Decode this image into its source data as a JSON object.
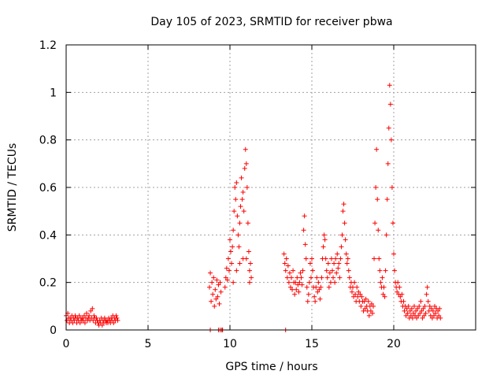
{
  "chart_data": {
    "type": "scatter",
    "title": "Day 105 of 2023, SRMTID for receiver pbwa",
    "xlabel": "GPS time / hours",
    "ylabel": "SRMTID / TECUs",
    "xlim": [
      0,
      25
    ],
    "ylim": [
      0,
      1.2
    ],
    "xticks": [
      0,
      5,
      10,
      15,
      20
    ],
    "xtick_labels": [
      "0",
      "5",
      "10",
      "15",
      "20"
    ],
    "yticks": [
      0,
      0.2,
      0.4,
      0.6,
      0.8,
      1,
      1.2
    ],
    "ytick_labels": [
      "0",
      "0.2",
      "0.4",
      "0.6",
      "0.8",
      "1",
      "1.2"
    ],
    "grid": true,
    "marker": "+",
    "colors": {
      "marker": "#ff0000",
      "grid": "#a0a0a0",
      "axes": "#000000"
    },
    "series": [
      {
        "name": "SRMTID",
        "points": [
          [
            0.0,
            0.06
          ],
          [
            0.05,
            0.04
          ],
          [
            0.1,
            0.07
          ],
          [
            0.15,
            0.05
          ],
          [
            0.2,
            0.03
          ],
          [
            0.25,
            0.05
          ],
          [
            0.3,
            0.04
          ],
          [
            0.35,
            0.06
          ],
          [
            0.4,
            0.03
          ],
          [
            0.45,
            0.05
          ],
          [
            0.5,
            0.04
          ],
          [
            0.55,
            0.06
          ],
          [
            0.6,
            0.05
          ],
          [
            0.65,
            0.03
          ],
          [
            0.7,
            0.05
          ],
          [
            0.75,
            0.04
          ],
          [
            0.8,
            0.06
          ],
          [
            0.85,
            0.03
          ],
          [
            0.9,
            0.05
          ],
          [
            0.95,
            0.04
          ],
          [
            1.0,
            0.05
          ],
          [
            1.05,
            0.04
          ],
          [
            1.1,
            0.06
          ],
          [
            1.15,
            0.03
          ],
          [
            1.2,
            0.05
          ],
          [
            1.25,
            0.07
          ],
          [
            1.3,
            0.04
          ],
          [
            1.35,
            0.05
          ],
          [
            1.4,
            0.06
          ],
          [
            1.45,
            0.04
          ],
          [
            1.5,
            0.08
          ],
          [
            1.55,
            0.05
          ],
          [
            1.6,
            0.09
          ],
          [
            1.65,
            0.04
          ],
          [
            1.7,
            0.06
          ],
          [
            1.75,
            0.05
          ],
          [
            1.8,
            0.03
          ],
          [
            1.85,
            0.05
          ],
          [
            1.9,
            0.04
          ],
          [
            1.95,
            0.03
          ],
          [
            2.0,
            0.02
          ],
          [
            2.05,
            0.04
          ],
          [
            2.1,
            0.03
          ],
          [
            2.15,
            0.05
          ],
          [
            2.2,
            0.02
          ],
          [
            2.25,
            0.04
          ],
          [
            2.3,
            0.03
          ],
          [
            2.35,
            0.05
          ],
          [
            2.4,
            0.04
          ],
          [
            2.45,
            0.03
          ],
          [
            2.5,
            0.04
          ],
          [
            2.55,
            0.03
          ],
          [
            2.6,
            0.05
          ],
          [
            2.65,
            0.04
          ],
          [
            2.7,
            0.03
          ],
          [
            2.75,
            0.05
          ],
          [
            2.8,
            0.04
          ],
          [
            2.85,
            0.06
          ],
          [
            2.9,
            0.03
          ],
          [
            2.95,
            0.05
          ],
          [
            3.0,
            0.04
          ],
          [
            3.05,
            0.06
          ],
          [
            3.1,
            0.05
          ],
          [
            3.15,
            0.04
          ],
          [
            8.8,
            0.0
          ],
          [
            9.3,
            0.0
          ],
          [
            9.4,
            0.0
          ],
          [
            9.5,
            0.0
          ],
          [
            9.55,
            0.0
          ],
          [
            13.4,
            0.0
          ],
          [
            8.75,
            0.18
          ],
          [
            8.8,
            0.24
          ],
          [
            8.85,
            0.12
          ],
          [
            8.9,
            0.2
          ],
          [
            8.95,
            0.15
          ],
          [
            9.0,
            0.22
          ],
          [
            9.05,
            0.1
          ],
          [
            9.1,
            0.17
          ],
          [
            9.15,
            0.13
          ],
          [
            9.2,
            0.21
          ],
          [
            9.25,
            0.14
          ],
          [
            9.3,
            0.19
          ],
          [
            9.35,
            0.11
          ],
          [
            9.4,
            0.2
          ],
          [
            9.45,
            0.16
          ],
          [
            9.7,
            0.18
          ],
          [
            9.75,
            0.22
          ],
          [
            9.8,
            0.26
          ],
          [
            9.85,
            0.21
          ],
          [
            9.9,
            0.3
          ],
          [
            9.95,
            0.25
          ],
          [
            10.0,
            0.38
          ],
          [
            10.05,
            0.33
          ],
          [
            10.1,
            0.28
          ],
          [
            10.15,
            0.35
          ],
          [
            10.2,
            0.42
          ],
          [
            10.25,
            0.5
          ],
          [
            10.3,
            0.6
          ],
          [
            10.35,
            0.55
          ],
          [
            10.4,
            0.62
          ],
          [
            10.45,
            0.48
          ],
          [
            10.5,
            0.4
          ],
          [
            10.55,
            0.35
          ],
          [
            10.6,
            0.45
          ],
          [
            10.65,
            0.52
          ],
          [
            10.7,
            0.64
          ],
          [
            10.75,
            0.55
          ],
          [
            10.8,
            0.58
          ],
          [
            10.85,
            0.5
          ],
          [
            10.9,
            0.68
          ],
          [
            10.95,
            0.76
          ],
          [
            11.0,
            0.7
          ],
          [
            11.05,
            0.6
          ],
          [
            11.1,
            0.45
          ],
          [
            11.15,
            0.33
          ],
          [
            11.2,
            0.25
          ],
          [
            11.25,
            0.28
          ],
          [
            11.3,
            0.22
          ],
          [
            10.2,
            0.2
          ],
          [
            10.4,
            0.25
          ],
          [
            10.6,
            0.28
          ],
          [
            10.8,
            0.3
          ],
          [
            11.0,
            0.3
          ],
          [
            11.2,
            0.2
          ],
          [
            13.3,
            0.32
          ],
          [
            13.35,
            0.28
          ],
          [
            13.4,
            0.25
          ],
          [
            13.45,
            0.3
          ],
          [
            13.5,
            0.22
          ],
          [
            13.55,
            0.27
          ],
          [
            13.6,
            0.2
          ],
          [
            13.65,
            0.24
          ],
          [
            13.7,
            0.18
          ],
          [
            13.75,
            0.22
          ],
          [
            13.8,
            0.17
          ],
          [
            13.85,
            0.25
          ],
          [
            13.9,
            0.2
          ],
          [
            13.95,
            0.15
          ],
          [
            14.0,
            0.2
          ],
          [
            14.05,
            0.17
          ],
          [
            14.1,
            0.22
          ],
          [
            14.15,
            0.19
          ],
          [
            14.2,
            0.16
          ],
          [
            14.25,
            0.2
          ],
          [
            14.3,
            0.24
          ],
          [
            14.35,
            0.22
          ],
          [
            14.4,
            0.19
          ],
          [
            14.45,
            0.25
          ],
          [
            14.5,
            0.42
          ],
          [
            14.55,
            0.48
          ],
          [
            14.6,
            0.36
          ],
          [
            14.65,
            0.3
          ],
          [
            14.7,
            0.18
          ],
          [
            14.75,
            0.12
          ],
          [
            14.8,
            0.15
          ],
          [
            14.85,
            0.2
          ],
          [
            14.9,
            0.28
          ],
          [
            14.95,
            0.22
          ],
          [
            15.0,
            0.3
          ],
          [
            15.05,
            0.25
          ],
          [
            15.1,
            0.18
          ],
          [
            15.15,
            0.14
          ],
          [
            15.2,
            0.12
          ],
          [
            15.25,
            0.18
          ],
          [
            15.3,
            0.22
          ],
          [
            15.35,
            0.16
          ],
          [
            15.4,
            0.2
          ],
          [
            15.45,
            0.17
          ],
          [
            15.5,
            0.13
          ],
          [
            15.55,
            0.18
          ],
          [
            15.6,
            0.22
          ],
          [
            15.65,
            0.3
          ],
          [
            15.7,
            0.35
          ],
          [
            15.75,
            0.4
          ],
          [
            15.8,
            0.38
          ],
          [
            15.85,
            0.3
          ],
          [
            15.9,
            0.25
          ],
          [
            15.95,
            0.22
          ],
          [
            16.0,
            0.28
          ],
          [
            16.05,
            0.18
          ],
          [
            16.1,
            0.24
          ],
          [
            16.15,
            0.2
          ],
          [
            16.2,
            0.3
          ],
          [
            16.25,
            0.25
          ],
          [
            16.3,
            0.22
          ],
          [
            16.35,
            0.28
          ],
          [
            16.4,
            0.2
          ],
          [
            16.45,
            0.3
          ],
          [
            16.5,
            0.24
          ],
          [
            16.55,
            0.32
          ],
          [
            16.6,
            0.26
          ],
          [
            16.65,
            0.28
          ],
          [
            16.7,
            0.22
          ],
          [
            16.75,
            0.3
          ],
          [
            16.8,
            0.35
          ],
          [
            16.85,
            0.4
          ],
          [
            16.9,
            0.5
          ],
          [
            16.95,
            0.53
          ],
          [
            17.0,
            0.45
          ],
          [
            17.05,
            0.38
          ],
          [
            17.1,
            0.32
          ],
          [
            17.15,
            0.28
          ],
          [
            17.2,
            0.3
          ],
          [
            17.25,
            0.25
          ],
          [
            17.3,
            0.22
          ],
          [
            17.35,
            0.18
          ],
          [
            17.4,
            0.2
          ],
          [
            17.45,
            0.16
          ],
          [
            17.5,
            0.18
          ],
          [
            17.55,
            0.14
          ],
          [
            17.6,
            0.2
          ],
          [
            17.65,
            0.15
          ],
          [
            17.7,
            0.12
          ],
          [
            17.75,
            0.18
          ],
          [
            17.8,
            0.14
          ],
          [
            17.85,
            0.16
          ],
          [
            17.9,
            0.12
          ],
          [
            17.95,
            0.15
          ],
          [
            18.0,
            0.1
          ],
          [
            18.05,
            0.14
          ],
          [
            18.1,
            0.12
          ],
          [
            18.15,
            0.08
          ],
          [
            18.2,
            0.12
          ],
          [
            18.25,
            0.09
          ],
          [
            18.3,
            0.13
          ],
          [
            18.35,
            0.1
          ],
          [
            18.4,
            0.08
          ],
          [
            18.45,
            0.12
          ],
          [
            18.5,
            0.06
          ],
          [
            18.55,
            0.1
          ],
          [
            18.6,
            0.08
          ],
          [
            18.65,
            0.11
          ],
          [
            18.7,
            0.07
          ],
          [
            18.75,
            0.1
          ],
          [
            18.8,
            0.3
          ],
          [
            18.85,
            0.45
          ],
          [
            18.9,
            0.6
          ],
          [
            18.95,
            0.76
          ],
          [
            19.0,
            0.55
          ],
          [
            19.05,
            0.42
          ],
          [
            19.1,
            0.3
          ],
          [
            19.15,
            0.25
          ],
          [
            19.2,
            0.2
          ],
          [
            19.25,
            0.18
          ],
          [
            19.3,
            0.22
          ],
          [
            19.35,
            0.15
          ],
          [
            19.4,
            0.18
          ],
          [
            19.45,
            0.14
          ],
          [
            19.5,
            0.25
          ],
          [
            19.55,
            0.4
          ],
          [
            19.6,
            0.55
          ],
          [
            19.65,
            0.7
          ],
          [
            19.7,
            0.85
          ],
          [
            19.75,
            1.03
          ],
          [
            19.8,
            0.95
          ],
          [
            19.85,
            0.8
          ],
          [
            19.9,
            0.6
          ],
          [
            19.95,
            0.45
          ],
          [
            20.0,
            0.32
          ],
          [
            20.05,
            0.25
          ],
          [
            20.1,
            0.2
          ],
          [
            20.15,
            0.18
          ],
          [
            20.2,
            0.16
          ],
          [
            20.25,
            0.2
          ],
          [
            20.3,
            0.15
          ],
          [
            20.35,
            0.18
          ],
          [
            20.4,
            0.14
          ],
          [
            20.45,
            0.12
          ],
          [
            20.5,
            0.15
          ],
          [
            20.55,
            0.1
          ],
          [
            20.6,
            0.12
          ],
          [
            20.65,
            0.08
          ],
          [
            20.7,
            0.1
          ],
          [
            20.75,
            0.06
          ],
          [
            20.8,
            0.09
          ],
          [
            20.85,
            0.07
          ],
          [
            20.9,
            0.1
          ],
          [
            20.95,
            0.05
          ],
          [
            21.0,
            0.08
          ],
          [
            21.05,
            0.06
          ],
          [
            21.1,
            0.09
          ],
          [
            21.15,
            0.05
          ],
          [
            21.2,
            0.07
          ],
          [
            21.25,
            0.1
          ],
          [
            21.3,
            0.06
          ],
          [
            21.35,
            0.08
          ],
          [
            21.4,
            0.05
          ],
          [
            21.45,
            0.09
          ],
          [
            21.5,
            0.06
          ],
          [
            21.55,
            0.1
          ],
          [
            21.6,
            0.07
          ],
          [
            21.65,
            0.12
          ],
          [
            21.7,
            0.08
          ],
          [
            21.75,
            0.05
          ],
          [
            21.8,
            0.09
          ],
          [
            21.85,
            0.06
          ],
          [
            21.9,
            0.1
          ],
          [
            21.95,
            0.07
          ],
          [
            22.0,
            0.15
          ],
          [
            22.05,
            0.18
          ],
          [
            22.1,
            0.12
          ],
          [
            22.15,
            0.08
          ],
          [
            22.2,
            0.1
          ],
          [
            22.25,
            0.06
          ],
          [
            22.3,
            0.09
          ],
          [
            22.35,
            0.05
          ],
          [
            22.4,
            0.08
          ],
          [
            22.45,
            0.06
          ],
          [
            22.5,
            0.1
          ],
          [
            22.55,
            0.07
          ],
          [
            22.6,
            0.09
          ],
          [
            22.65,
            0.05
          ],
          [
            22.7,
            0.08
          ],
          [
            22.75,
            0.06
          ],
          [
            22.8,
            0.09
          ],
          [
            22.85,
            0.05
          ]
        ]
      }
    ]
  }
}
